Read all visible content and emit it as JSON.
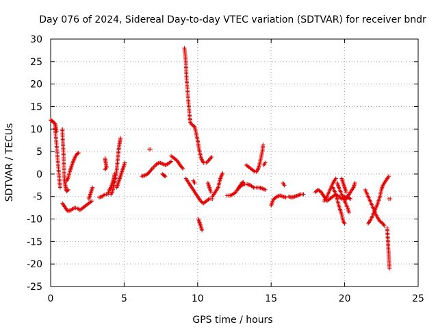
{
  "chart_data": {
    "type": "scatter",
    "title": "Day 076 of 2024, Sidereal Day-to-day VTEC variation (SDTVAR) for receiver bndr",
    "xlabel": "GPS time / hours",
    "ylabel": "SDTVAR / TECUs",
    "xlim": [
      0,
      25
    ],
    "ylim": [
      -25,
      30
    ],
    "xticks": [
      0,
      5,
      10,
      15,
      20,
      25
    ],
    "yticks": [
      -25,
      -20,
      -15,
      -10,
      -5,
      0,
      5,
      10,
      15,
      20,
      25,
      30
    ],
    "grid": true,
    "marker": "plus",
    "color": "#e00000",
    "series": [
      {
        "name": "arc-01",
        "points": [
          [
            0.0,
            12
          ],
          [
            0.1,
            11.8
          ],
          [
            0.2,
            11.5
          ],
          [
            0.3,
            11.2
          ],
          [
            0.35,
            10.5
          ],
          [
            0.4,
            9.5
          ]
        ]
      },
      {
        "name": "arc-02",
        "points": [
          [
            0.3,
            10.5
          ],
          [
            0.35,
            8.5
          ],
          [
            0.4,
            6.5
          ],
          [
            0.45,
            4.5
          ],
          [
            0.5,
            2.5
          ],
          [
            0.55,
            0.5
          ],
          [
            0.6,
            -1.5
          ],
          [
            0.65,
            -3
          ]
        ]
      },
      {
        "name": "arc-03",
        "points": [
          [
            0.8,
            10
          ],
          [
            0.82,
            8
          ],
          [
            0.85,
            6
          ],
          [
            0.88,
            4
          ],
          [
            0.9,
            2
          ],
          [
            0.92,
            0
          ],
          [
            0.95,
            -1.5
          ],
          [
            1.0,
            -2.5
          ],
          [
            1.05,
            -3.5
          ],
          [
            1.1,
            -3.8
          ],
          [
            1.2,
            -3.5
          ]
        ]
      },
      {
        "name": "arc-04",
        "points": [
          [
            1.1,
            -1.5
          ],
          [
            1.2,
            -0.8
          ],
          [
            1.3,
            0.5
          ],
          [
            1.4,
            1.5
          ],
          [
            1.5,
            2.5
          ],
          [
            1.6,
            3.3
          ],
          [
            1.7,
            4
          ],
          [
            1.8,
            4.5
          ],
          [
            1.9,
            4.7
          ]
        ]
      },
      {
        "name": "arc-05",
        "points": [
          [
            0.8,
            -6.5
          ],
          [
            0.9,
            -7
          ],
          [
            1.0,
            -7.5
          ],
          [
            1.1,
            -8
          ],
          [
            1.2,
            -8.2
          ],
          [
            1.4,
            -8
          ],
          [
            1.6,
            -7.5
          ],
          [
            1.8,
            -7.6
          ],
          [
            2.0,
            -8
          ],
          [
            2.2,
            -7.5
          ],
          [
            2.4,
            -7
          ],
          [
            2.6,
            -6.5
          ],
          [
            2.8,
            -6
          ]
        ]
      },
      {
        "name": "arc-06",
        "points": [
          [
            2.6,
            -5.5
          ],
          [
            2.7,
            -4.5
          ],
          [
            2.8,
            -3.5
          ],
          [
            2.85,
            -3
          ]
        ]
      },
      {
        "name": "arc-07",
        "points": [
          [
            3.3,
            -5.2
          ],
          [
            3.5,
            -5
          ],
          [
            3.7,
            -4.5
          ],
          [
            3.9,
            -4.5
          ],
          [
            4.0,
            -3.5
          ],
          [
            4.1,
            -3
          ],
          [
            4.2,
            -2
          ],
          [
            4.3,
            -1
          ],
          [
            4.35,
            0
          ]
        ]
      },
      {
        "name": "arc-08",
        "points": [
          [
            3.7,
            3.5
          ],
          [
            3.75,
            2.5
          ],
          [
            3.8,
            1.5
          ],
          [
            3.7,
            1
          ]
        ]
      },
      {
        "name": "arc-09",
        "points": [
          [
            4.1,
            -4.5
          ],
          [
            4.2,
            -4
          ],
          [
            4.3,
            -2.5
          ],
          [
            4.4,
            -1
          ],
          [
            4.5,
            1
          ],
          [
            4.55,
            3
          ],
          [
            4.6,
            4.5
          ],
          [
            4.65,
            6
          ],
          [
            4.7,
            7
          ],
          [
            4.75,
            8
          ]
        ]
      },
      {
        "name": "arc-10",
        "points": [
          [
            4.5,
            -3
          ],
          [
            4.6,
            -2
          ],
          [
            4.7,
            -1
          ],
          [
            4.8,
            0
          ],
          [
            4.9,
            1
          ],
          [
            5.0,
            2
          ],
          [
            5.05,
            2.5
          ]
        ]
      },
      {
        "name": "arc-11",
        "points": [
          [
            6.2,
            -0.5
          ],
          [
            6.4,
            -0.3
          ],
          [
            6.6,
            0
          ],
          [
            6.8,
            0.8
          ],
          [
            7.0,
            1.5
          ],
          [
            7.2,
            2.2
          ],
          [
            7.4,
            2.5
          ],
          [
            7.6,
            2.3
          ],
          [
            7.8,
            2
          ],
          [
            8.0,
            2.3
          ],
          [
            8.2,
            2.8
          ]
        ]
      },
      {
        "name": "arc-12",
        "points": [
          [
            6.7,
            5.5
          ],
          [
            6.8,
            5.5
          ]
        ]
      },
      {
        "name": "arc-13",
        "points": [
          [
            7.6,
            0
          ],
          [
            7.7,
            -0.3
          ],
          [
            7.8,
            -0.5
          ]
        ]
      },
      {
        "name": "arc-14",
        "points": [
          [
            8.2,
            4
          ],
          [
            8.4,
            3.5
          ],
          [
            8.6,
            3
          ],
          [
            8.8,
            2
          ],
          [
            9.0,
            1.2
          ]
        ]
      },
      {
        "name": "arc-15",
        "points": [
          [
            9.1,
            28
          ],
          [
            9.15,
            26.5
          ],
          [
            9.2,
            25
          ],
          [
            9.22,
            23
          ],
          [
            9.25,
            21
          ],
          [
            9.3,
            19
          ],
          [
            9.35,
            17
          ],
          [
            9.4,
            15
          ],
          [
            9.45,
            13
          ],
          [
            9.5,
            11.5
          ],
          [
            9.6,
            11
          ],
          [
            9.8,
            10.5
          ],
          [
            9.9,
            9
          ],
          [
            10.0,
            7.5
          ],
          [
            10.1,
            5.5
          ],
          [
            10.2,
            4
          ],
          [
            10.3,
            3
          ],
          [
            10.4,
            2.5
          ],
          [
            10.6,
            2.5
          ],
          [
            10.8,
            3.2
          ],
          [
            10.95,
            3.8
          ]
        ]
      },
      {
        "name": "arc-16",
        "points": [
          [
            9.2,
            -1
          ],
          [
            9.4,
            -2
          ],
          [
            9.6,
            -3
          ],
          [
            9.8,
            -4
          ],
          [
            10.0,
            -5
          ],
          [
            10.2,
            -6
          ],
          [
            10.4,
            -6.5
          ],
          [
            10.6,
            -6
          ],
          [
            10.8,
            -5.5
          ],
          [
            11.0,
            -5.5
          ]
        ]
      },
      {
        "name": "arc-17",
        "points": [
          [
            10.05,
            -10
          ],
          [
            10.1,
            -10.5
          ],
          [
            10.15,
            -11
          ],
          [
            10.2,
            -11.5
          ],
          [
            10.3,
            -12.5
          ]
        ]
      },
      {
        "name": "arc-18",
        "points": [
          [
            9.7,
            -1.5
          ],
          [
            9.8,
            -2
          ]
        ]
      },
      {
        "name": "arc-19",
        "points": [
          [
            10.7,
            -2
          ],
          [
            10.8,
            -3
          ],
          [
            10.9,
            -4
          ]
        ]
      },
      {
        "name": "arc-20",
        "points": [
          [
            11.0,
            -5
          ],
          [
            11.2,
            -4
          ],
          [
            11.4,
            -3
          ],
          [
            11.5,
            -1.5
          ],
          [
            11.6,
            -0.5
          ],
          [
            11.7,
            0.2
          ]
        ]
      },
      {
        "name": "arc-21",
        "points": [
          [
            12.0,
            -4.8
          ],
          [
            12.2,
            -4.8
          ],
          [
            12.4,
            -4.5
          ],
          [
            12.6,
            -4
          ],
          [
            12.8,
            -3
          ],
          [
            13.0,
            -2.5
          ],
          [
            13.2,
            -2.2
          ],
          [
            13.4,
            -2.3
          ],
          [
            13.6,
            -2.5
          ],
          [
            13.8,
            -3
          ],
          [
            14.0,
            -3
          ],
          [
            14.2,
            -3
          ],
          [
            14.4,
            -3.2
          ],
          [
            14.6,
            -3.5
          ]
        ]
      },
      {
        "name": "arc-22",
        "points": [
          [
            12.8,
            -3.2
          ],
          [
            12.9,
            -2.5
          ],
          [
            13.0,
            -2
          ],
          [
            13.1,
            -1.8
          ]
        ]
      },
      {
        "name": "arc-23",
        "points": [
          [
            13.3,
            2
          ],
          [
            13.5,
            1.5
          ],
          [
            13.7,
            1
          ],
          [
            13.9,
            0.5
          ],
          [
            14.0,
            0.5
          ],
          [
            14.1,
            1
          ],
          [
            14.2,
            2
          ],
          [
            14.3,
            3.5
          ],
          [
            14.4,
            5
          ],
          [
            14.45,
            6.5
          ]
        ]
      },
      {
        "name": "arc-24",
        "points": [
          [
            14.5,
            2
          ],
          [
            14.6,
            2.5
          ]
        ]
      },
      {
        "name": "arc-25",
        "points": [
          [
            15.0,
            -7
          ],
          [
            15.1,
            -6
          ],
          [
            15.2,
            -5.5
          ],
          [
            15.4,
            -5
          ],
          [
            15.6,
            -4.8
          ],
          [
            15.8,
            -5
          ],
          [
            16.0,
            -5.2
          ]
        ]
      },
      {
        "name": "arc-26",
        "points": [
          [
            15.8,
            -2
          ],
          [
            15.9,
            -2.5
          ]
        ]
      },
      {
        "name": "arc-27",
        "points": [
          [
            16.2,
            -5
          ],
          [
            16.4,
            -5.2
          ],
          [
            16.6,
            -5
          ],
          [
            16.8,
            -4.8
          ],
          [
            17.0,
            -4.5
          ],
          [
            17.2,
            -4.5
          ]
        ]
      },
      {
        "name": "arc-28",
        "points": [
          [
            18.0,
            -4
          ],
          [
            18.2,
            -3.5
          ],
          [
            18.4,
            -4
          ],
          [
            18.6,
            -5
          ],
          [
            18.8,
            -6
          ],
          [
            19.0,
            -5.5
          ],
          [
            19.2,
            -5
          ],
          [
            19.4,
            -4.5
          ],
          [
            19.6,
            -5
          ],
          [
            19.8,
            -5.5
          ],
          [
            20.0,
            -5
          ],
          [
            20.2,
            -5.2
          ],
          [
            20.4,
            -5.5
          ]
        ]
      },
      {
        "name": "arc-29",
        "points": [
          [
            18.6,
            -6
          ],
          [
            18.8,
            -5
          ],
          [
            19.0,
            -3.5
          ],
          [
            19.2,
            -2
          ],
          [
            19.4,
            -1
          ]
        ]
      },
      {
        "name": "arc-30",
        "points": [
          [
            19.2,
            -3
          ],
          [
            19.4,
            -4.5
          ],
          [
            19.6,
            -7
          ],
          [
            19.8,
            -9
          ],
          [
            19.9,
            -10.5
          ],
          [
            20.0,
            -11
          ]
        ]
      },
      {
        "name": "arc-31",
        "points": [
          [
            19.5,
            -2
          ],
          [
            19.6,
            -3
          ],
          [
            19.8,
            -4.5
          ],
          [
            20.0,
            -6
          ],
          [
            20.2,
            -7.5
          ],
          [
            20.3,
            -8.5
          ]
        ]
      },
      {
        "name": "arc-32",
        "points": [
          [
            19.8,
            -1
          ],
          [
            19.9,
            -2
          ],
          [
            20.0,
            -3
          ],
          [
            20.1,
            -4
          ]
        ]
      },
      {
        "name": "arc-33",
        "points": [
          [
            20.0,
            -6
          ],
          [
            20.2,
            -5
          ],
          [
            20.4,
            -4
          ],
          [
            20.6,
            -3
          ],
          [
            20.7,
            -2
          ]
        ]
      },
      {
        "name": "arc-34",
        "points": [
          [
            21.4,
            -3.5
          ],
          [
            21.6,
            -5
          ],
          [
            21.8,
            -6.5
          ],
          [
            22.0,
            -8
          ],
          [
            22.2,
            -9.5
          ],
          [
            22.4,
            -10.5
          ],
          [
            22.6,
            -11
          ],
          [
            22.7,
            -11.5
          ]
        ]
      },
      {
        "name": "arc-35",
        "points": [
          [
            21.6,
            -11
          ],
          [
            21.8,
            -10
          ],
          [
            22.0,
            -8.5
          ],
          [
            22.2,
            -7
          ],
          [
            22.4,
            -5
          ],
          [
            22.5,
            -3.5
          ],
          [
            22.6,
            -2.5
          ],
          [
            22.8,
            -1.5
          ],
          [
            22.9,
            -1
          ],
          [
            23.0,
            -0.5
          ]
        ]
      },
      {
        "name": "arc-36",
        "points": [
          [
            22.9,
            -12
          ],
          [
            22.92,
            -13.5
          ],
          [
            22.95,
            -15
          ],
          [
            22.97,
            -16.5
          ],
          [
            23.0,
            -18
          ],
          [
            23.02,
            -19.5
          ],
          [
            23.05,
            -21
          ]
        ]
      },
      {
        "name": "arc-37",
        "points": [
          [
            23.0,
            -5.5
          ],
          [
            23.1,
            -5.5
          ]
        ]
      }
    ]
  }
}
